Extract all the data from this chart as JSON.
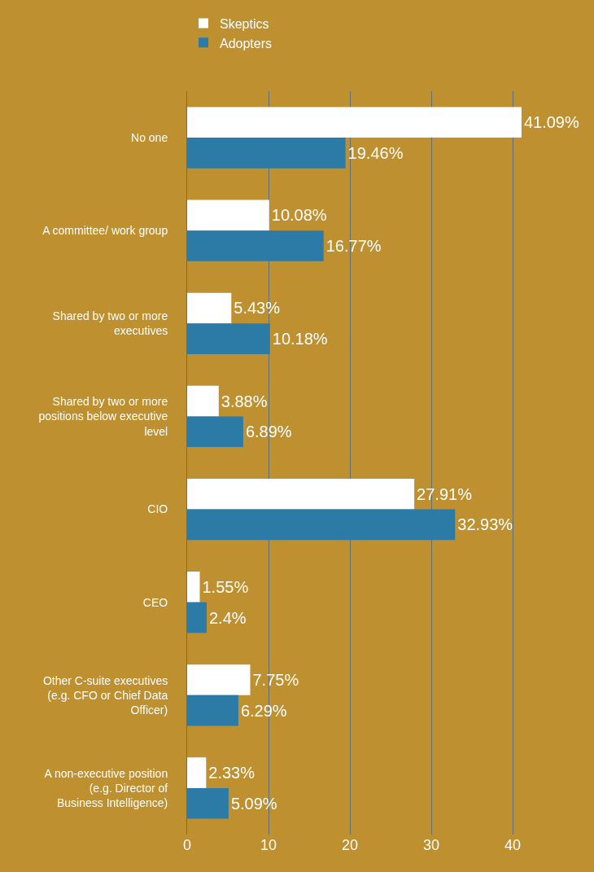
{
  "chart_data": {
    "type": "bar",
    "orientation": "horizontal",
    "categories": [
      "No one",
      "A committee/ work group",
      "Shared by two or more executives",
      "Shared by two or more positions below executive level",
      "CIO",
      "CEO",
      "Other C-suite executives (e.g. CFO or Chief Data Officer)",
      "A non-executive position (e.g. Director of Business Intelligence)"
    ],
    "series": [
      {
        "name": "Skeptics",
        "color": "#ffffff",
        "values": [
          41.09,
          10.08,
          5.43,
          3.88,
          27.91,
          1.55,
          7.75,
          2.33
        ],
        "value_labels": [
          "41.09%",
          "10.08%",
          "5.43%",
          "3.88%",
          "27.91%",
          "1.55%",
          "7.75%",
          "2.33%"
        ]
      },
      {
        "name": "Adopters",
        "color": "#2b7ba6",
        "values": [
          19.46,
          16.77,
          10.18,
          6.89,
          32.93,
          2.4,
          6.29,
          5.09
        ],
        "value_labels": [
          "19.46%",
          "16.77%",
          "10.18%",
          "6.89%",
          "32.93%",
          "2.4%",
          "6.29%",
          "5.09%"
        ]
      }
    ],
    "xlim": [
      0,
      50
    ],
    "xticks": [
      0,
      10,
      20,
      30,
      40
    ],
    "grid": "x",
    "legend": "top left"
  }
}
